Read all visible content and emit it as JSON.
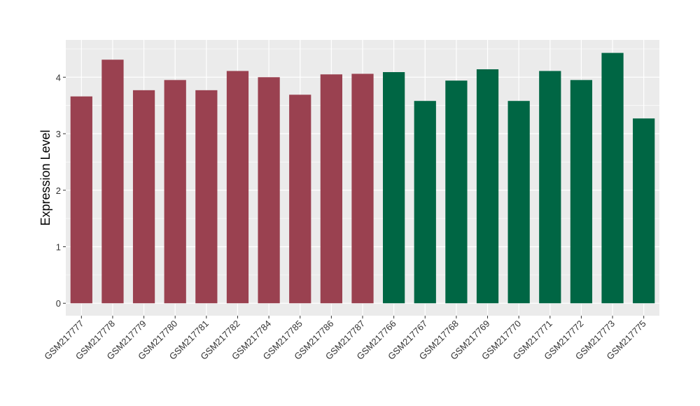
{
  "chart_data": {
    "type": "bar",
    "title": "",
    "xlabel": "",
    "ylabel": "Expression Level",
    "ylim": [
      -0.22,
      4.66
    ],
    "yticks": [
      0,
      1,
      2,
      3,
      4
    ],
    "grid": true,
    "categories": [
      "GSM217777",
      "GSM217778",
      "GSM217779",
      "GSM217780",
      "GSM217781",
      "GSM217782",
      "GSM217784",
      "GSM217785",
      "GSM217786",
      "GSM217787",
      "GSM217766",
      "GSM217767",
      "GSM217768",
      "GSM217769",
      "GSM217770",
      "GSM217771",
      "GSM217772",
      "GSM217773",
      "GSM217775"
    ],
    "values": [
      3.66,
      4.31,
      3.77,
      3.95,
      3.77,
      4.11,
      4.0,
      3.69,
      4.05,
      4.06,
      4.09,
      3.58,
      3.94,
      4.14,
      3.58,
      4.11,
      3.95,
      4.43,
      3.27
    ],
    "groups": [
      0,
      0,
      0,
      0,
      0,
      0,
      0,
      0,
      0,
      0,
      1,
      1,
      1,
      1,
      1,
      1,
      1,
      1,
      1
    ],
    "colors": [
      "#9a4150",
      "#006644"
    ],
    "background": "#ebebeb"
  }
}
